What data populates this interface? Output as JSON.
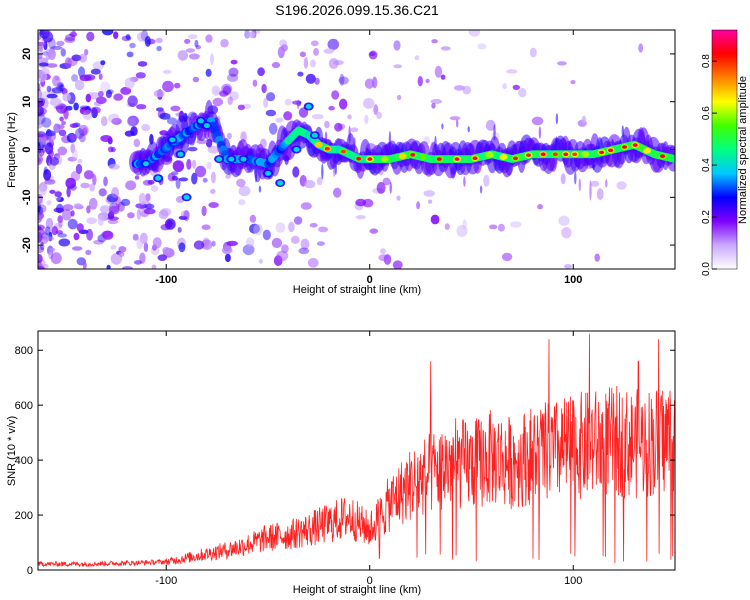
{
  "title": "S196.2026.099.15.36.C21",
  "chart_data": [
    {
      "type": "heatmap",
      "name": "spectrogram",
      "xlabel": "Height of straight line (km)",
      "ylabel": "Frequency (Hz)",
      "xlim": [
        -163,
        150
      ],
      "ylim": [
        -25,
        25
      ],
      "x_ticks": [
        -100,
        0,
        100
      ],
      "y_ticks": [
        20,
        10,
        0,
        -10,
        -20
      ],
      "ridge": {
        "x": [
          -110,
          -95,
          -85,
          -78,
          -70,
          -60,
          -50,
          -42,
          -35,
          -30,
          -25,
          -20,
          -15,
          -10,
          -5,
          0,
          10,
          20,
          30,
          40,
          50,
          60,
          70,
          80,
          90,
          100,
          110,
          120,
          130,
          140,
          150
        ],
        "y": [
          -3,
          2,
          5,
          6,
          -2,
          -2,
          -3,
          1,
          4,
          3,
          1,
          0,
          0,
          -1,
          -2,
          -2,
          -2,
          -1,
          -2,
          -2,
          -2,
          -1,
          -2,
          -1,
          -1,
          -1,
          -1,
          0,
          1,
          -1,
          -2
        ]
      },
      "colorbar": {
        "label": "Normalized spectral amplitude",
        "range": [
          0.0,
          0.92
        ],
        "ticks": [
          "0.0",
          "0.2",
          "0.4",
          "0.6",
          "0.8"
        ],
        "tick_values": [
          0.0,
          0.2,
          0.4,
          0.6,
          0.8
        ],
        "colors": [
          "#ffffff",
          "#c9a8ff",
          "#8000ff",
          "#0000ff",
          "#00c8ff",
          "#00ff80",
          "#40ff00",
          "#ffff00",
          "#ff8000",
          "#ff0000",
          "#ff00a0"
        ]
      }
    },
    {
      "type": "line",
      "name": "snr",
      "xlabel": "Height of straight line (km)",
      "ylabel": "SNR (10 * v/v)",
      "xlim": [
        -163,
        150
      ],
      "ylim": [
        0,
        870
      ],
      "x_ticks": [
        -100,
        0,
        100
      ],
      "y_ticks": [
        0,
        200,
        400,
        600,
        800
      ],
      "color": "#ff2020",
      "envelope": {
        "x": [
          -163,
          -140,
          -120,
          -100,
          -90,
          -80,
          -70,
          -60,
          -50,
          -40,
          -30,
          -20,
          -10,
          0,
          10,
          20,
          30,
          40,
          50,
          60,
          70,
          80,
          90,
          100,
          110,
          120,
          130,
          140,
          150
        ],
        "y": [
          22,
          22,
          25,
          30,
          45,
          60,
          75,
          95,
          120,
          130,
          150,
          175,
          200,
          150,
          250,
          320,
          360,
          400,
          390,
          420,
          400,
          430,
          440,
          460,
          470,
          480,
          470,
          480,
          500
        ]
      },
      "peaks": [
        {
          "x": 30,
          "y": 760
        },
        {
          "x": 88,
          "y": 840
        },
        {
          "x": 108,
          "y": 860
        },
        {
          "x": 142,
          "y": 840
        },
        {
          "x": 132,
          "y": 760
        }
      ]
    }
  ]
}
